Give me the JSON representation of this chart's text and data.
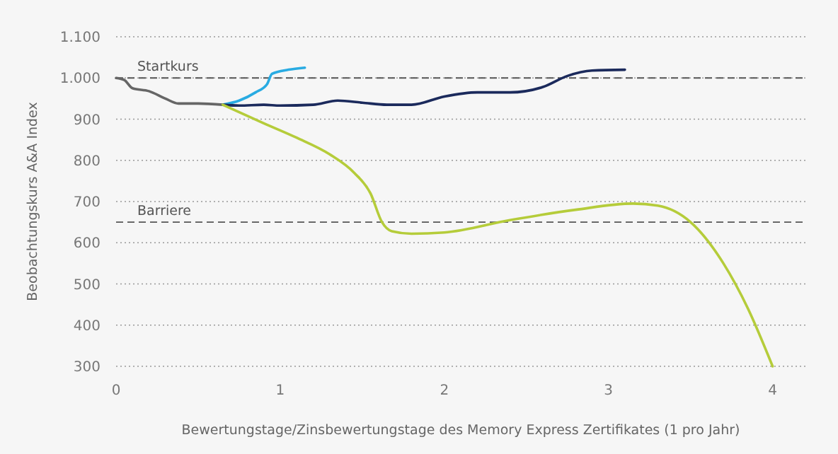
{
  "chart_data": {
    "type": "line",
    "xlabel": "Bewertungstage/Zinsbewertungstage des Memory Express Zertifikates (1 pro Jahr)",
    "ylabel": "Beobachtungskurs A&A Index",
    "xlim": [
      0,
      4.2
    ],
    "xticks": [
      0,
      1,
      2,
      3,
      4
    ],
    "ylim": [
      300,
      1100
    ],
    "yticks": [
      {
        "value": 300,
        "label": "300"
      },
      {
        "value": 400,
        "label": "400"
      },
      {
        "value": 500,
        "label": "500"
      },
      {
        "value": 600,
        "label": "600"
      },
      {
        "value": 700,
        "label": "700"
      },
      {
        "value": 800,
        "label": "800"
      },
      {
        "value": 900,
        "label": "900"
      },
      {
        "value": 1000,
        "label": "1.000"
      },
      {
        "value": 1100,
        "label": "1.100"
      }
    ],
    "grid": "y",
    "line_style": "solid",
    "marker": "none",
    "ref_lines": [
      {
        "axis": "y",
        "value": 1000,
        "label": "Startkurs",
        "color": "#555555",
        "line_style": "dashed"
      },
      {
        "axis": "y",
        "value": 650,
        "label": "Barriere",
        "color": "#555555",
        "line_style": "dashed"
      }
    ],
    "series": [
      {
        "color": "#666666",
        "x": [
          0,
          0.05,
          0.1,
          0.2,
          0.3,
          0.38,
          0.5,
          0.65
        ],
        "values": [
          1000,
          995,
          975,
          968,
          950,
          938,
          938,
          935
        ]
      },
      {
        "color": "#29abe2",
        "x": [
          0.65,
          0.75,
          0.85,
          0.92,
          0.95,
          1.05,
          1.15
        ],
        "values": [
          935,
          945,
          965,
          985,
          1010,
          1020,
          1025
        ]
      },
      {
        "color": "#1b2a5c",
        "x": [
          0.65,
          0.75,
          0.9,
          1.0,
          1.2,
          1.35,
          1.5,
          1.65,
          1.8,
          2.0,
          2.2,
          2.4,
          2.6,
          2.75,
          2.9,
          3.1
        ],
        "values": [
          935,
          933,
          935,
          933,
          935,
          945,
          940,
          935,
          935,
          955,
          965,
          965,
          978,
          1005,
          1018,
          1020
        ]
      },
      {
        "color": "#b5cc3a",
        "x": [
          0.65,
          0.9,
          1.1,
          1.3,
          1.45,
          1.55,
          1.62,
          1.68,
          1.8,
          2.0,
          2.4,
          2.8,
          3.15,
          3.3,
          3.5,
          3.7,
          3.85,
          4.0
        ],
        "values": [
          935,
          890,
          855,
          815,
          770,
          720,
          650,
          628,
          622,
          625,
          655,
          680,
          695,
          690,
          650,
          550,
          440,
          300
        ]
      }
    ]
  }
}
